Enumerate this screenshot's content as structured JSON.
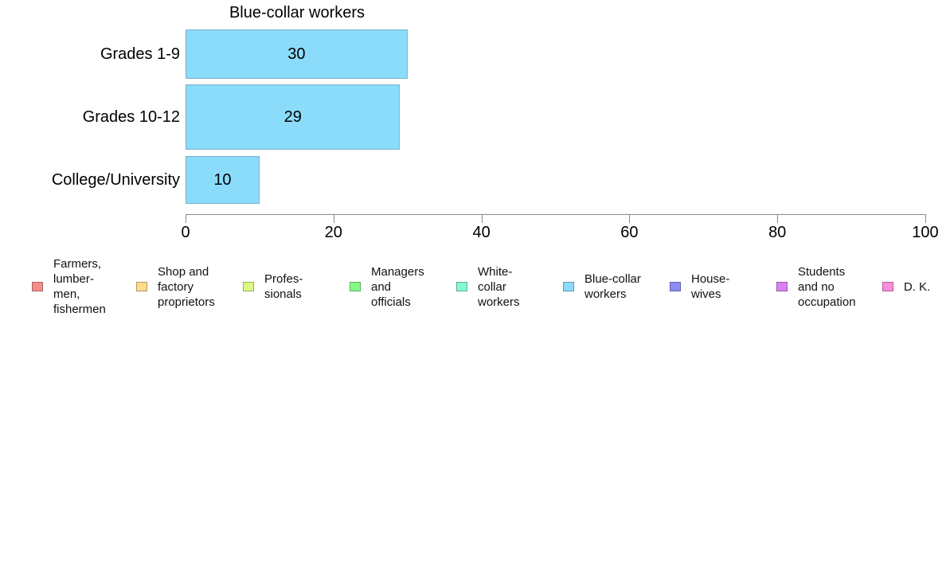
{
  "chart_data": {
    "type": "bar",
    "orientation": "horizontal",
    "title": "Blue-collar workers",
    "categories": [
      "Grades 1-9",
      "Grades 10-12",
      "College/University"
    ],
    "values": [
      30,
      29,
      10
    ],
    "xlabel": "",
    "ylabel": "",
    "xlim": [
      0,
      100
    ],
    "xticks": [
      0,
      20,
      40,
      60,
      80,
      100
    ],
    "grid": false,
    "legend_position": "bottom",
    "bar_color": "#8ADCFA",
    "bar_border_color": "#7EB0C8",
    "axis_color": "#8a8a8a",
    "text_color": "#000000"
  },
  "legend": {
    "items": [
      {
        "name": "farmers-lumbermen-fishermen",
        "label": "Farmers,\nlumber-\nmen,\nfishermen",
        "color": "#F58C8C"
      },
      {
        "name": "shop-and-factory-proprietors",
        "label": "Shop and\nfactory\nproprietors",
        "color": "#FFDC8C"
      },
      {
        "name": "professionals",
        "label": "Profes-\nsionals",
        "color": "#DCF982"
      },
      {
        "name": "managers-and-officials",
        "label": "Managers\nand\nofficials",
        "color": "#85F985"
      },
      {
        "name": "white-collar-workers",
        "label": "White-\ncollar\nworkers",
        "color": "#85F9D4"
      },
      {
        "name": "blue-collar-workers",
        "label": "Blue-collar\nworkers",
        "color": "#8ADCFA"
      },
      {
        "name": "housewives",
        "label": "House-\nwives",
        "color": "#8C8CF2"
      },
      {
        "name": "students-and-no-occupation",
        "label": "Students\nand no\noccupation",
        "color": "#D981F2"
      },
      {
        "name": "dk",
        "label": "D. K.",
        "color": "#FA8ED8"
      }
    ]
  }
}
